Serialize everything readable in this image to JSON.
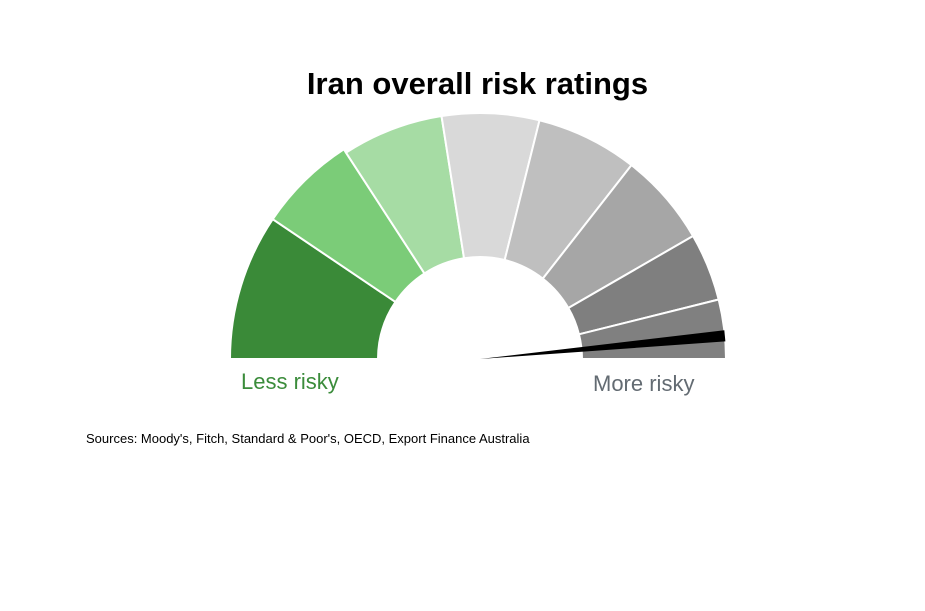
{
  "chart_data": {
    "type": "gauge",
    "title": "Iran overall risk ratings",
    "scale_labels": {
      "low": "Less risky",
      "high": "More risky"
    },
    "bands": [
      {
        "color": "#3a8a38"
      },
      {
        "color": "#7bcc78"
      },
      {
        "color": "#a6dca4"
      },
      {
        "color": "#d9d9d9"
      },
      {
        "color": "#bfbfbf"
      },
      {
        "color": "#a6a6a6"
      },
      {
        "color": "#7f7f7f"
      },
      {
        "color": "#808080"
      }
    ],
    "needle_value": 0.97,
    "needle_color": "#000000",
    "source": "Sources: Moody's, Fitch, Standard & Poor's, OECD, Export Finance Australia"
  }
}
